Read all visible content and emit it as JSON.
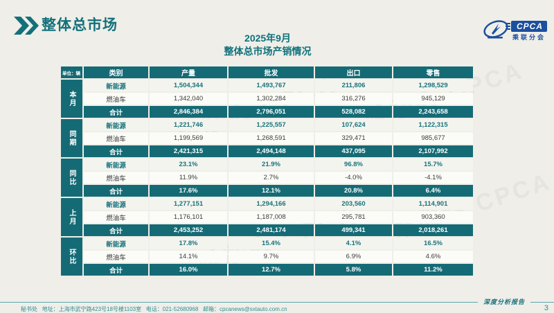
{
  "page": {
    "title": "整体总市场",
    "subtitle_line1": "2025年9月",
    "subtitle_line2": "整体总市场产销情况",
    "unit_label": "单位：辆",
    "footer": "秘书处   地址：上海市武宁路423号18号楼1103室   电话：021-52680968   邮箱：cpcanews@sxtauto.com.cn",
    "report_tagline": "深度分析报告",
    "page_number": "3",
    "watermark_text": "乘联会 CPCA"
  },
  "logo": {
    "name": "CPCA",
    "subtext": "乘联分会",
    "icon": "cpca-ellipse-swoosh-icon",
    "brand_blue": "#1c4f9f"
  },
  "colors": {
    "teal": "#156b75",
    "title_teal": "#12707a",
    "nev_text": "#17747e",
    "background": "#efeee8",
    "footer_teal": "#2e8d96"
  },
  "table": {
    "columns": [
      "类别",
      "产量",
      "批发",
      "出口",
      "零售"
    ],
    "sections": [
      {
        "label": "本月",
        "rows": [
          {
            "category": "新能源",
            "type": "nev",
            "values": [
              "1,504,344",
              "1,493,767",
              "211,806",
              "1,298,529"
            ]
          },
          {
            "category": "燃油车",
            "type": "fuel",
            "values": [
              "1,342,040",
              "1,302,284",
              "316,276",
              "945,129"
            ]
          },
          {
            "category": "合计",
            "type": "total",
            "values": [
              "2,846,384",
              "2,796,051",
              "528,082",
              "2,243,658"
            ]
          }
        ]
      },
      {
        "label": "同期",
        "rows": [
          {
            "category": "新能源",
            "type": "nev",
            "values": [
              "1,221,746",
              "1,225,557",
              "107,624",
              "1,122,315"
            ]
          },
          {
            "category": "燃油车",
            "type": "fuel",
            "values": [
              "1,199,569",
              "1,268,591",
              "329,471",
              "985,677"
            ]
          },
          {
            "category": "合计",
            "type": "total",
            "values": [
              "2,421,315",
              "2,494,148",
              "437,095",
              "2,107,992"
            ]
          }
        ]
      },
      {
        "label": "同比",
        "rows": [
          {
            "category": "新能源",
            "type": "nev",
            "values": [
              "23.1%",
              "21.9%",
              "96.8%",
              "15.7%"
            ]
          },
          {
            "category": "燃油车",
            "type": "fuel",
            "values": [
              "11.9%",
              "2.7%",
              "-4.0%",
              "-4.1%"
            ]
          },
          {
            "category": "合计",
            "type": "total",
            "values": [
              "17.6%",
              "12.1%",
              "20.8%",
              "6.4%"
            ]
          }
        ]
      },
      {
        "label": "上月",
        "rows": [
          {
            "category": "新能源",
            "type": "nev",
            "values": [
              "1,277,151",
              "1,294,166",
              "203,560",
              "1,114,901"
            ]
          },
          {
            "category": "燃油车",
            "type": "fuel",
            "values": [
              "1,176,101",
              "1,187,008",
              "295,781",
              "903,360"
            ]
          },
          {
            "category": "合计",
            "type": "total",
            "values": [
              "2,453,252",
              "2,481,174",
              "499,341",
              "2,018,261"
            ]
          }
        ]
      },
      {
        "label": "环比",
        "rows": [
          {
            "category": "新能源",
            "type": "nev",
            "values": [
              "17.8%",
              "15.4%",
              "4.1%",
              "16.5%"
            ]
          },
          {
            "category": "燃油车",
            "type": "fuel",
            "values": [
              "14.1%",
              "9.7%",
              "6.9%",
              "4.6%"
            ]
          },
          {
            "category": "合计",
            "type": "total",
            "values": [
              "16.0%",
              "12.7%",
              "5.8%",
              "11.2%"
            ]
          }
        ]
      }
    ]
  }
}
